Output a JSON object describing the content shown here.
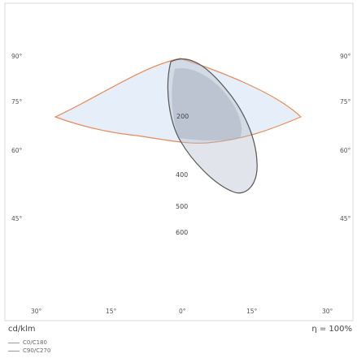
{
  "chart_data": {
    "type": "polar-luminous-intensity",
    "unit": "cd/klm",
    "efficiency": {
      "label": "η",
      "value": "= 100%"
    },
    "angle_labels_left": [
      "90°",
      "75°",
      "60°",
      "45°"
    ],
    "angle_labels_bottom": [
      "30°",
      "15°",
      "0°",
      "15°",
      "30°"
    ],
    "angle_labels_right": [
      "90°",
      "75°",
      "60°",
      "45°"
    ],
    "radial_labels": [
      "200",
      "400",
      "500",
      "600"
    ],
    "series": [
      {
        "name": "C0/C180",
        "color": "#e58a56",
        "fill": "#e6eef9",
        "points": [
          {
            "angle": -80,
            "intensity": 240
          },
          {
            "angle": -75,
            "intensity": 220
          },
          {
            "angle": -60,
            "intensity": 120
          },
          {
            "angle": -30,
            "intensity": 90
          },
          {
            "angle": 0,
            "intensity": 90
          },
          {
            "angle": 30,
            "intensity": 90
          },
          {
            "angle": 60,
            "intensity": 120
          },
          {
            "angle": 75,
            "intensity": 220
          },
          {
            "angle": 80,
            "intensity": 240
          }
        ]
      },
      {
        "name": "C90/C270",
        "color": "#555555",
        "fill": "#b8bfcc",
        "points": [
          {
            "angle": 0,
            "intensity": 0
          },
          {
            "angle": 15,
            "intensity": 560
          },
          {
            "angle": 30,
            "intensity": 520
          },
          {
            "angle": 45,
            "intensity": 420
          },
          {
            "angle": 60,
            "intensity": 300
          },
          {
            "angle": 75,
            "intensity": 200
          },
          {
            "angle": 90,
            "intensity": 60
          }
        ]
      }
    ]
  }
}
